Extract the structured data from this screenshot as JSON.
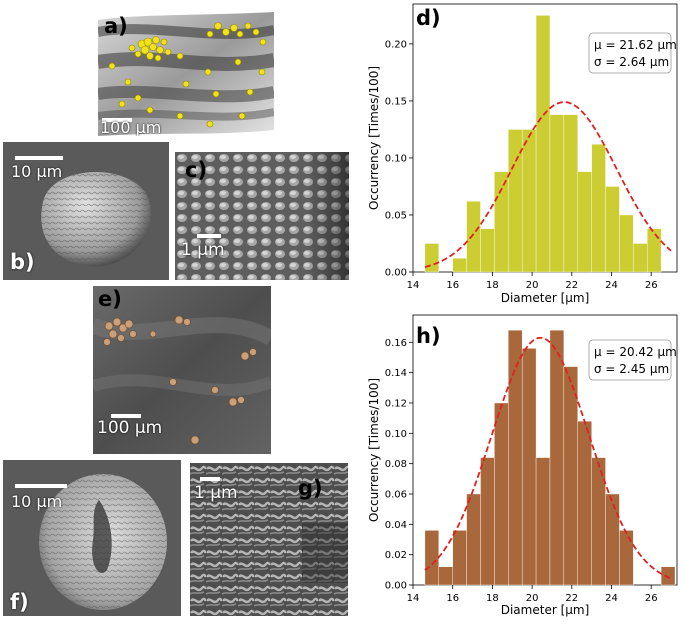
{
  "panels": {
    "a": {
      "label": "a)",
      "scale": "100 μm"
    },
    "b": {
      "label": "b)",
      "scale": "10 μm"
    },
    "c": {
      "label": "c)",
      "scale": "1 μm"
    },
    "e": {
      "label": "e)",
      "scale": "100 μm"
    },
    "f": {
      "label": "f)",
      "scale": "10 μm"
    },
    "g": {
      "label": "g)",
      "scale": "1 μm"
    }
  },
  "chart_data": [
    {
      "id": "d",
      "panel_label": "d)",
      "type": "bar",
      "color": "#cccc33",
      "fit_color": "#e02020",
      "xlabel": "Diameter [μm]",
      "ylabel": "Occurrency [Times/100]",
      "xlim": [
        14,
        27.3
      ],
      "ylim": [
        0,
        0.235
      ],
      "xticks": [
        14,
        16,
        18,
        20,
        22,
        24,
        26
      ],
      "yticks": [
        0.0,
        0.05,
        0.1,
        0.15,
        0.2
      ],
      "ytick_labels": [
        "0.00",
        "0.05",
        "0.10",
        "0.15",
        "0.20"
      ],
      "bin_edges": [
        14.6,
        15.3,
        16.0,
        16.7,
        17.4,
        18.1,
        18.8,
        19.5,
        20.2,
        20.9,
        21.6,
        22.3,
        23.0,
        23.7,
        24.4,
        25.1,
        25.8,
        26.5
      ],
      "values": [
        0.025,
        0.0,
        0.012,
        0.062,
        0.038,
        0.088,
        0.125,
        0.125,
        0.225,
        0.138,
        0.138,
        0.088,
        0.112,
        0.075,
        0.05,
        0.025,
        0.038
      ],
      "legend": {
        "mu": "μ = 21.62 μm",
        "sigma": "σ = 2.64 μm"
      },
      "fit": {
        "mean": 21.62,
        "sd": 2.64,
        "peak": 0.149
      }
    },
    {
      "id": "h",
      "panel_label": "h)",
      "type": "bar",
      "color": "#a8683c",
      "fit_color": "#e02020",
      "xlabel": "Diameter [μm]",
      "ylabel": "Occurrency [Times/100]",
      "xlim": [
        14,
        27.3
      ],
      "ylim": [
        0,
        0.178
      ],
      "xticks": [
        14,
        16,
        18,
        20,
        22,
        24,
        26
      ],
      "yticks": [
        0.0,
        0.02,
        0.04,
        0.06,
        0.08,
        0.1,
        0.12,
        0.14,
        0.16
      ],
      "ytick_labels": [
        "0.00",
        "0.02",
        "0.04",
        "0.06",
        "0.08",
        "0.10",
        "0.12",
        "0.14",
        "0.16"
      ],
      "bin_edges": [
        14.6,
        15.3,
        16.0,
        16.7,
        17.4,
        18.1,
        18.8,
        19.5,
        20.2,
        20.9,
        21.6,
        22.3,
        23.0,
        23.7,
        24.4,
        25.1,
        25.8,
        26.5,
        27.2
      ],
      "values": [
        0.036,
        0.012,
        0.036,
        0.06,
        0.084,
        0.12,
        0.168,
        0.156,
        0.084,
        0.168,
        0.144,
        0.108,
        0.084,
        0.06,
        0.036,
        0.0,
        0.0,
        0.012
      ],
      "legend": {
        "mu": "μ = 20.42 μm",
        "sigma": "σ = 2.45 μm"
      },
      "fit": {
        "mean": 20.42,
        "sd": 2.45,
        "peak": 0.163
      }
    }
  ]
}
